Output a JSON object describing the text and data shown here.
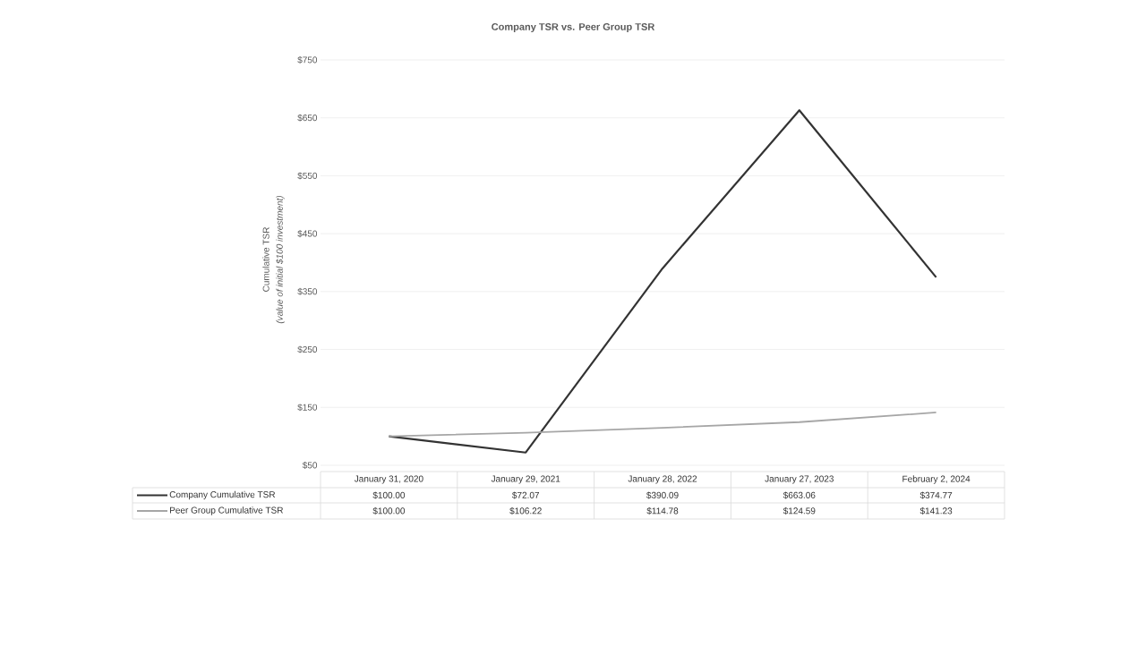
{
  "chart_data": {
    "type": "line",
    "title": "Company TSR vs. Peer Group TSR",
    "ylabel": "Cumulative TSR",
    "annotations": [
      "(value of initial $100 investment)"
    ],
    "categories": [
      "January 31, 2020",
      "January 29, 2021",
      "January 28, 2022",
      "January 27, 2023",
      "February 2, 2024"
    ],
    "series": [
      {
        "name": "Company Cumulative TSR",
        "color": "#333333",
        "values": [
          100.0,
          72.07,
          390.09,
          663.06,
          374.77
        ],
        "value_labels": [
          "$100.00",
          "$72.07",
          "$390.09",
          "$663.06",
          "$374.77"
        ]
      },
      {
        "name": "Peer Group Cumulative TSR",
        "color": "#a6a6a6",
        "values": [
          100.0,
          106.22,
          114.78,
          124.59,
          141.23
        ],
        "value_labels": [
          "$100.00",
          "$106.22",
          "$114.78",
          "$124.59",
          "$141.23"
        ]
      }
    ],
    "ylim": [
      50,
      750
    ],
    "yticks": [
      {
        "value": 50,
        "label": "$50"
      },
      {
        "value": 150,
        "label": "$150"
      },
      {
        "value": 250,
        "label": "$250"
      },
      {
        "value": 350,
        "label": "$350"
      },
      {
        "value": 450,
        "label": "$450"
      },
      {
        "value": 550,
        "label": "$550"
      },
      {
        "value": 650,
        "label": "$650"
      },
      {
        "value": 750,
        "label": "$750"
      }
    ],
    "grid": "y",
    "legend": "bottom",
    "marker": "none",
    "line_style": "solid"
  }
}
